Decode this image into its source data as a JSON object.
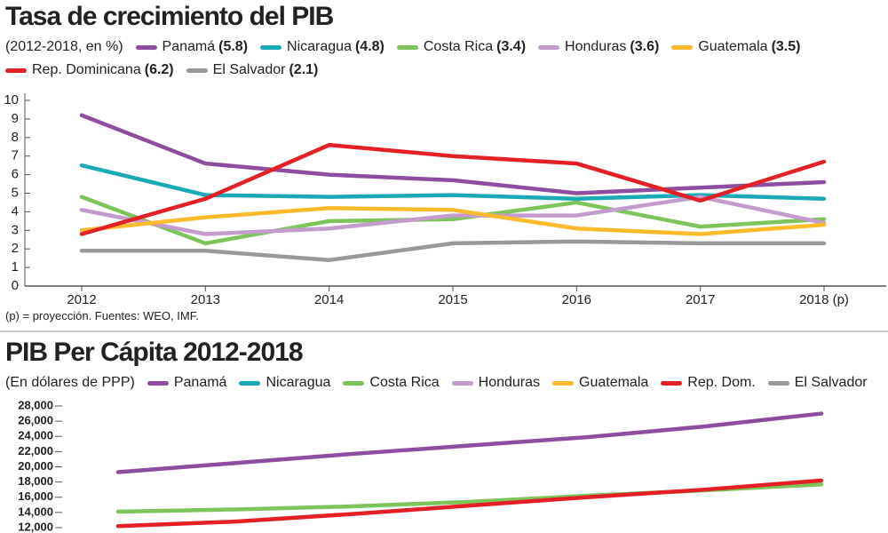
{
  "chart_data": [
    {
      "type": "line",
      "title": "Tasa de crecimiento del PIB",
      "subtitle": "(2012-2018, en %)",
      "categories": [
        "2012",
        "2013",
        "2014",
        "2015",
        "2016",
        "2017",
        "2018 (p)"
      ],
      "series": [
        {
          "name": "Panamá",
          "average_label": "(5.8)",
          "color": "#8e4d9e",
          "values": [
            9.2,
            6.6,
            6.0,
            5.7,
            5.0,
            5.3,
            5.6
          ]
        },
        {
          "name": "Nicaragua",
          "average_label": "(4.8)",
          "color": "#1aaab5",
          "values": [
            6.5,
            4.9,
            4.8,
            4.9,
            4.7,
            4.9,
            4.7
          ]
        },
        {
          "name": "Costa Rica",
          "average_label": "(3.4)",
          "color": "#7dc45a",
          "values": [
            4.8,
            2.3,
            3.5,
            3.6,
            4.5,
            3.2,
            3.6
          ]
        },
        {
          "name": "Honduras",
          "average_label": "(3.6)",
          "color": "#c39bcc",
          "values": [
            4.1,
            2.8,
            3.1,
            3.8,
            3.8,
            4.8,
            3.4
          ]
        },
        {
          "name": "Guatemala",
          "average_label": "(3.5)",
          "color": "#fbbb2b",
          "values": [
            3.0,
            3.7,
            4.2,
            4.1,
            3.1,
            2.8,
            3.3
          ]
        },
        {
          "name": "Rep. Dominicana",
          "average_label": "(6.2)",
          "color": "#e41f26",
          "values": [
            2.8,
            4.7,
            7.6,
            7.0,
            6.6,
            4.6,
            6.7
          ]
        },
        {
          "name": "El Salvador",
          "average_label": "(2.1)",
          "color": "#999999",
          "values": [
            1.9,
            1.9,
            1.4,
            2.3,
            2.4,
            2.3,
            2.3
          ]
        }
      ],
      "ylim": [
        0,
        10
      ],
      "yticks": [
        0,
        1,
        2,
        3,
        4,
        5,
        6,
        7,
        8,
        9,
        10
      ],
      "footnote": "(p) = proyección. Fuentes: WEO, IMF."
    },
    {
      "type": "line",
      "title": "PIB Per Cápita 2012-2018",
      "subtitle": "(En dólares de PPP)",
      "categories": [
        null,
        null,
        null,
        null,
        null,
        null,
        null
      ],
      "series": [
        {
          "name": "Panamá",
          "color": "#8e4d9e",
          "values": [
            19300,
            20500,
            21700,
            22800,
            23900,
            25300,
            27000
          ]
        },
        {
          "name": "Nicaragua",
          "color": "#1aaab5",
          "values": [
            null,
            null,
            null,
            null,
            null,
            null,
            null
          ]
        },
        {
          "name": "Costa Rica",
          "color": "#7dc45a",
          "values": [
            14100,
            14400,
            14800,
            15400,
            16200,
            16900,
            17700
          ]
        },
        {
          "name": "Honduras",
          "color": "#c39bcc",
          "values": [
            null,
            null,
            null,
            null,
            null,
            null,
            null
          ]
        },
        {
          "name": "Guatemala",
          "color": "#fbbb2b",
          "values": [
            null,
            null,
            null,
            null,
            null,
            null,
            null
          ]
        },
        {
          "name": "Rep. Dom.",
          "color": "#e41f26",
          "values": [
            12200,
            12800,
            13800,
            14900,
            16000,
            17000,
            18200
          ]
        },
        {
          "name": "El Salvador",
          "color": "#999999",
          "values": [
            null,
            null,
            null,
            null,
            null,
            null,
            null
          ]
        }
      ],
      "ylim": [
        12000,
        28000
      ],
      "yticks": [
        {
          "value": 12000,
          "label": "12,000"
        },
        {
          "value": 14000,
          "label": "14,000"
        },
        {
          "value": 16000,
          "label": "16,000"
        },
        {
          "value": 18000,
          "label": "18,000"
        },
        {
          "value": 20000,
          "label": "20,000"
        },
        {
          "value": 22000,
          "label": "22,000"
        },
        {
          "value": 24000,
          "label": "24,000"
        },
        {
          "value": 26000,
          "label": "26,000"
        },
        {
          "value": 28000,
          "label": "28,000"
        }
      ]
    }
  ]
}
